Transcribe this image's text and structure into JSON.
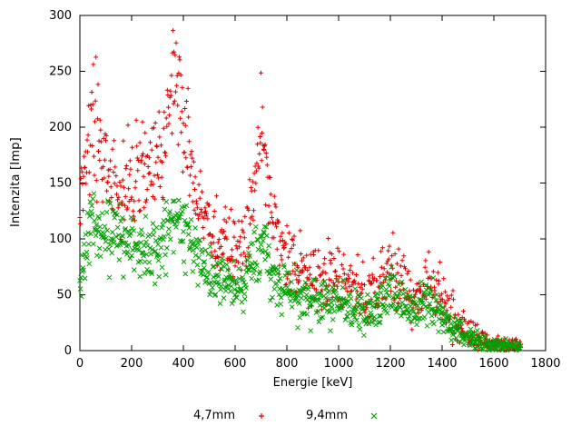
{
  "chart_data": {
    "type": "scatter",
    "title": "",
    "xlabel": "Energie [keV]",
    "ylabel": "Intenzita [Imp]",
    "xlim": [
      0,
      1800
    ],
    "ylim": [
      0,
      300
    ],
    "xticks": [
      0,
      200,
      400,
      600,
      800,
      1000,
      1200,
      1400,
      1600,
      1800
    ],
    "yticks": [
      0,
      50,
      100,
      150,
      200,
      250,
      300
    ],
    "grid": false,
    "legend_position": "below-center",
    "x_step": 2,
    "series": [
      {
        "name": "4,7mm",
        "marker": "plus",
        "color": "#e00000",
        "noise_k": 1.8,
        "envelope": [
          [
            0,
            145
          ],
          [
            20,
            165
          ],
          [
            45,
            205
          ],
          [
            60,
            215
          ],
          [
            75,
            180
          ],
          [
            100,
            150
          ],
          [
            150,
            148
          ],
          [
            200,
            150
          ],
          [
            250,
            158
          ],
          [
            300,
            170
          ],
          [
            330,
            185
          ],
          [
            355,
            225
          ],
          [
            370,
            240
          ],
          [
            385,
            220
          ],
          [
            400,
            195
          ],
          [
            430,
            160
          ],
          [
            470,
            125
          ],
          [
            500,
            108
          ],
          [
            550,
            95
          ],
          [
            600,
            88
          ],
          [
            640,
            95
          ],
          [
            670,
            135
          ],
          [
            695,
            183
          ],
          [
            710,
            183
          ],
          [
            725,
            150
          ],
          [
            750,
            110
          ],
          [
            780,
            85
          ],
          [
            820,
            75
          ],
          [
            900,
            70
          ],
          [
            1000,
            62
          ],
          [
            1100,
            52
          ],
          [
            1150,
            55
          ],
          [
            1190,
            72
          ],
          [
            1210,
            74
          ],
          [
            1240,
            60
          ],
          [
            1280,
            50
          ],
          [
            1320,
            52
          ],
          [
            1350,
            60
          ],
          [
            1370,
            58
          ],
          [
            1400,
            42
          ],
          [
            1450,
            28
          ],
          [
            1500,
            17
          ],
          [
            1550,
            10
          ],
          [
            1600,
            7
          ],
          [
            1650,
            5
          ],
          [
            1705,
            4
          ]
        ]
      },
      {
        "name": "9,4mm",
        "marker": "cross",
        "color": "#00a000",
        "noise_k": 1.5,
        "envelope": [
          [
            0,
            72
          ],
          [
            20,
            90
          ],
          [
            45,
            110
          ],
          [
            60,
            115
          ],
          [
            75,
            108
          ],
          [
            100,
            108
          ],
          [
            150,
            100
          ],
          [
            200,
            95
          ],
          [
            250,
            90
          ],
          [
            300,
            92
          ],
          [
            330,
            100
          ],
          [
            355,
            118
          ],
          [
            370,
            125
          ],
          [
            385,
            118
          ],
          [
            400,
            108
          ],
          [
            430,
            95
          ],
          [
            470,
            80
          ],
          [
            500,
            72
          ],
          [
            550,
            62
          ],
          [
            600,
            58
          ],
          [
            640,
            62
          ],
          [
            670,
            80
          ],
          [
            695,
            98
          ],
          [
            710,
            98
          ],
          [
            725,
            82
          ],
          [
            750,
            65
          ],
          [
            780,
            55
          ],
          [
            820,
            50
          ],
          [
            900,
            47
          ],
          [
            1000,
            42
          ],
          [
            1100,
            36
          ],
          [
            1150,
            38
          ],
          [
            1190,
            50
          ],
          [
            1210,
            52
          ],
          [
            1240,
            42
          ],
          [
            1280,
            35
          ],
          [
            1320,
            37
          ],
          [
            1350,
            44
          ],
          [
            1370,
            42
          ],
          [
            1400,
            30
          ],
          [
            1450,
            20
          ],
          [
            1500,
            13
          ],
          [
            1550,
            8
          ],
          [
            1600,
            5
          ],
          [
            1650,
            4
          ],
          [
            1705,
            3
          ]
        ]
      }
    ]
  }
}
